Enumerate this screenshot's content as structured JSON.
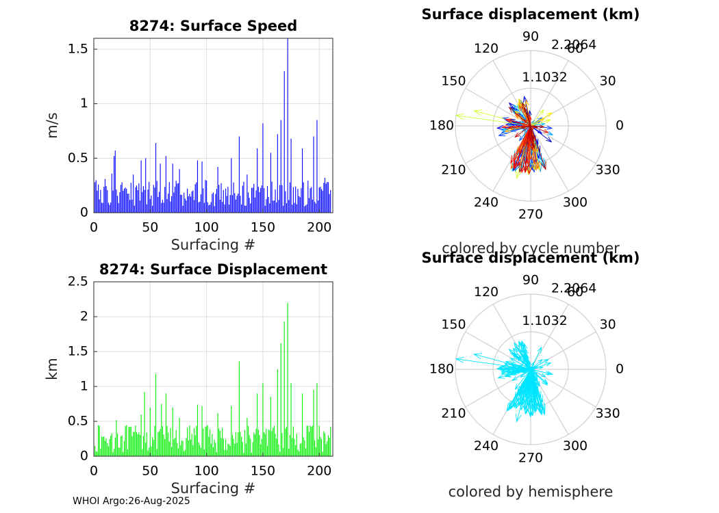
{
  "footer": "WHOI Argo:26-Aug-2025",
  "chart_data": [
    {
      "type": "bar",
      "title": "8274: Surface Speed",
      "xlabel": "Surfacing #",
      "ylabel": "m/s",
      "xlim": [
        0,
        212
      ],
      "ylim": [
        0,
        1.6
      ],
      "xticks": [
        "0",
        "50",
        "100",
        "150",
        "200"
      ],
      "yticks": [
        "0",
        "0.5",
        "1",
        "1.5"
      ],
      "color": "#0000ff",
      "grid": true,
      "peaks": [
        [
          1,
          0.28
        ],
        [
          10,
          0.31
        ],
        [
          16,
          0.36
        ],
        [
          18,
          0.52
        ],
        [
          19,
          0.57
        ],
        [
          25,
          0.28
        ],
        [
          35,
          0.35
        ],
        [
          42,
          0.48
        ],
        [
          46,
          0.5
        ],
        [
          55,
          0.64
        ],
        [
          59,
          0.45
        ],
        [
          64,
          0.52
        ],
        [
          70,
          0.45
        ],
        [
          76,
          0.4
        ],
        [
          92,
          0.48
        ],
        [
          96,
          0.47
        ],
        [
          110,
          0.42
        ],
        [
          122,
          0.5
        ],
        [
          129,
          0.7
        ],
        [
          136,
          0.35
        ],
        [
          145,
          0.59
        ],
        [
          150,
          0.82
        ],
        [
          157,
          0.55
        ],
        [
          163,
          0.72
        ],
        [
          166,
          0.85
        ],
        [
          169,
          1.3
        ],
        [
          172,
          1.6
        ],
        [
          175,
          0.68
        ],
        [
          185,
          0.59
        ],
        [
          195,
          0.7
        ],
        [
          198,
          0.85
        ],
        [
          205,
          0.32
        ],
        [
          208,
          0.28
        ]
      ]
    },
    {
      "type": "bar",
      "title": "8274: Surface Displacement",
      "xlabel": "Surfacing #",
      "ylabel": "km",
      "xlim": [
        0,
        212
      ],
      "ylim": [
        0,
        2.5
      ],
      "xticks": [
        "0",
        "50",
        "100",
        "150",
        "200"
      ],
      "yticks": [
        "0",
        "0.5",
        "1",
        "1.5",
        "2",
        "2.5"
      ],
      "color": "#00ee00",
      "grid": true,
      "peaks": [
        [
          1,
          0.15
        ],
        [
          10,
          0.22
        ],
        [
          16,
          0.33
        ],
        [
          20,
          0.52
        ],
        [
          25,
          0.3
        ],
        [
          35,
          0.35
        ],
        [
          42,
          0.6
        ],
        [
          45,
          0.92
        ],
        [
          50,
          0.7
        ],
        [
          55,
          1.18
        ],
        [
          60,
          0.75
        ],
        [
          64,
          0.9
        ],
        [
          70,
          0.7
        ],
        [
          76,
          0.55
        ],
        [
          92,
          0.74
        ],
        [
          96,
          0.72
        ],
        [
          110,
          0.62
        ],
        [
          122,
          0.72
        ],
        [
          129,
          1.36
        ],
        [
          136,
          0.55
        ],
        [
          145,
          0.9
        ],
        [
          150,
          1.05
        ],
        [
          157,
          0.85
        ],
        [
          163,
          1.25
        ],
        [
          166,
          1.62
        ],
        [
          169,
          1.93
        ],
        [
          172,
          2.2
        ],
        [
          175,
          1.05
        ],
        [
          185,
          0.9
        ],
        [
          195,
          0.95
        ],
        [
          198,
          1.05
        ],
        [
          205,
          0.33
        ],
        [
          208,
          0.3
        ]
      ]
    },
    {
      "type": "polar",
      "title": "Surface displacement (km)",
      "subtitle": "colored by cycle number",
      "rmax": 2.2064,
      "rlabels": [
        "1.1032",
        "2.2064"
      ],
      "angles": [
        "0",
        "30",
        "60",
        "90",
        "120",
        "150",
        "180",
        "210",
        "240",
        "270",
        "300",
        "330"
      ],
      "colormap": "jet"
    },
    {
      "type": "polar",
      "title": "Surface displacement (km)",
      "subtitle": "colored by hemisphere",
      "rmax": 2.2064,
      "rlabels": [
        "1.1032",
        "2.2064"
      ],
      "angles": [
        "0",
        "30",
        "60",
        "90",
        "120",
        "150",
        "180",
        "210",
        "240",
        "270",
        "300",
        "330"
      ],
      "color": "#00e5ff"
    }
  ]
}
